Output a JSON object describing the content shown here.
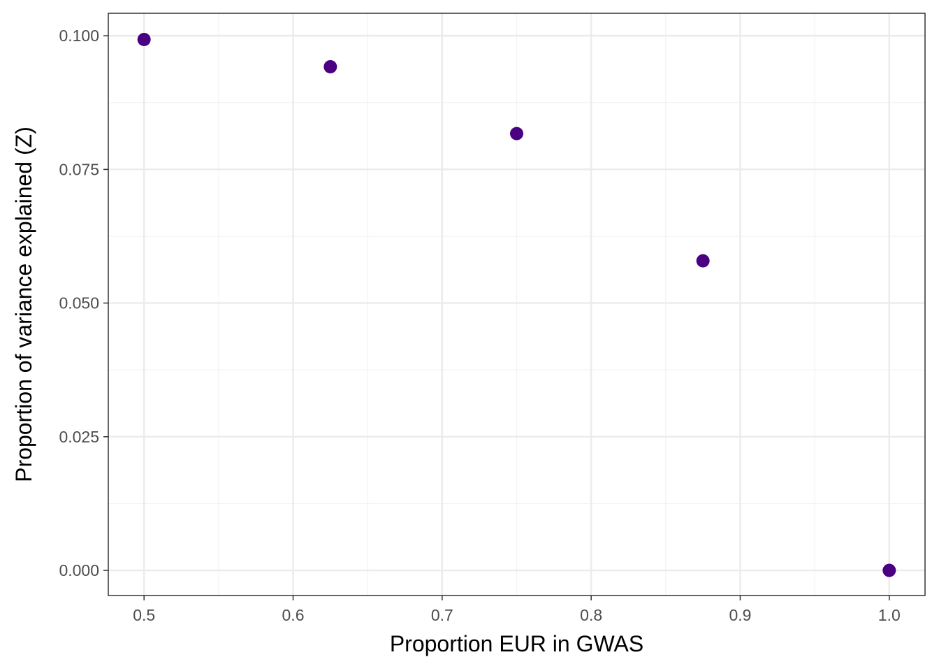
{
  "chart_data": {
    "type": "scatter",
    "xlabel": "Proportion EUR in GWAS",
    "ylabel": "Proportion of variance explained (Z)",
    "xlim": [
      0.476,
      1.024
    ],
    "ylim": [
      -0.0047,
      0.1042
    ],
    "x_ticks": [
      0.5,
      0.6,
      0.7,
      0.8,
      0.9,
      1.0
    ],
    "x_tick_labels": [
      "0.5",
      "0.6",
      "0.7",
      "0.8",
      "0.9",
      "1.0"
    ],
    "y_ticks": [
      0.0,
      0.025,
      0.05,
      0.075,
      0.1
    ],
    "y_tick_labels": [
      "0.000",
      "0.025",
      "0.050",
      "0.075",
      "0.100"
    ],
    "grid": true,
    "points": [
      {
        "x": 0.5,
        "y": 0.0993
      },
      {
        "x": 0.625,
        "y": 0.0942
      },
      {
        "x": 0.75,
        "y": 0.0817
      },
      {
        "x": 0.875,
        "y": 0.0579
      },
      {
        "x": 1.0,
        "y": 0.0
      }
    ],
    "colors": {
      "point": "#4B0082",
      "grid_major": "#ebebeb",
      "grid_minor": "#f2f2f2",
      "panel_border": "#333333",
      "tick_text": "#4d4d4d",
      "axis_title": "#000000"
    }
  }
}
